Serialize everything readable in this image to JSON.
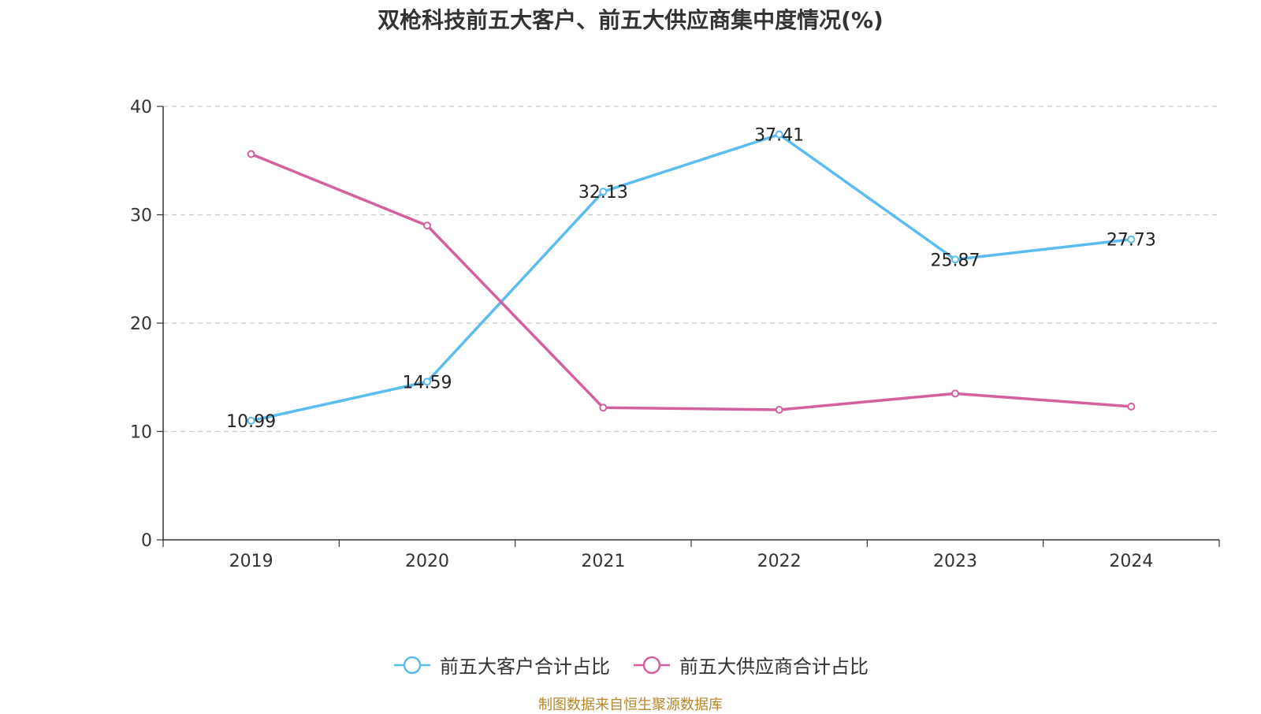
{
  "title": "双枪科技前五大客户、前五大供应商集中度情况(%)",
  "source": "制图数据来自恒生聚源数据库",
  "chart_data": {
    "type": "line",
    "categories": [
      "2019",
      "2020",
      "2021",
      "2022",
      "2023",
      "2024"
    ],
    "ylim": [
      0,
      40
    ],
    "yticks": [
      0,
      10,
      20,
      30,
      40
    ],
    "grid": true,
    "legend_position": "bottom",
    "series": [
      {
        "name": "前五大客户合计占比",
        "color": "#5bbcf0",
        "values": [
          10.99,
          14.59,
          32.13,
          37.41,
          25.87,
          27.73
        ],
        "labels": [
          "10.99",
          "14.59",
          "32.13",
          "37.41",
          "25.87",
          "27.73"
        ]
      },
      {
        "name": "前五大供应商合计占比",
        "color": "#d4609f",
        "values": [
          35.6,
          29.0,
          12.2,
          12.0,
          13.5,
          12.3
        ],
        "labels": []
      }
    ]
  }
}
